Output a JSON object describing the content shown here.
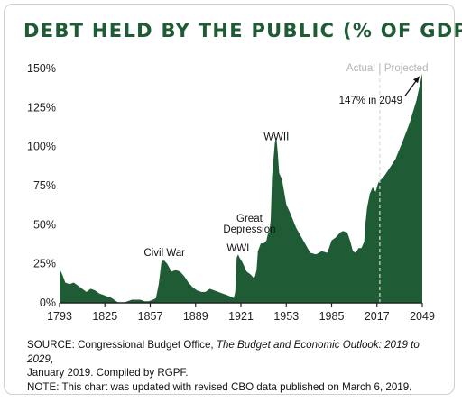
{
  "chart_data": {
    "type": "area",
    "title": "DEBT HELD BY THE PUBLIC (% OF GDP)",
    "xlim": [
      1793,
      2049
    ],
    "ylim": [
      0,
      150
    ],
    "x_ticks": [
      "1793",
      "1825",
      "1857",
      "1889",
      "1921",
      "1953",
      "1985",
      "2017",
      "2049"
    ],
    "y_ticks": [
      "0%",
      "25%",
      "50%",
      "75%",
      "100%",
      "125%",
      "150%"
    ],
    "fill_color": "#1f5b34",
    "divider_year": 2019,
    "phase_labels": {
      "actual": "Actual",
      "projected": "Projected"
    },
    "annotations": [
      {
        "text": "Civil War",
        "x": 1867,
        "y": 30
      },
      {
        "text": "WWI",
        "x": 1919,
        "y": 33
      },
      {
        "text": "Great",
        "x": 1927,
        "y": 52
      },
      {
        "text": "Depression",
        "x": 1927,
        "y": 45
      },
      {
        "text": "WWII",
        "x": 1946,
        "y": 104
      },
      {
        "text": "147% in 2049",
        "x": 2049,
        "y": 147
      }
    ],
    "series": [
      {
        "x": [
          1793,
          1795,
          1797,
          1800,
          1803,
          1806,
          1809,
          1812,
          1815,
          1818,
          1821,
          1824,
          1827,
          1830,
          1833,
          1835,
          1838,
          1841,
          1844,
          1847,
          1850,
          1853,
          1856,
          1859,
          1861,
          1863,
          1865,
          1867,
          1869,
          1872,
          1875,
          1878,
          1881,
          1884,
          1887,
          1890,
          1893,
          1896,
          1899,
          1902,
          1905,
          1908,
          1911,
          1914,
          1916,
          1917,
          1918,
          1919,
          1920,
          1922,
          1925,
          1928,
          1930,
          1931,
          1932,
          1933,
          1935,
          1937,
          1939,
          1940,
          1941,
          1942,
          1943,
          1944,
          1945,
          1946,
          1947,
          1948,
          1950,
          1953,
          1956,
          1960,
          1965,
          1970,
          1974,
          1978,
          1982,
          1985,
          1988,
          1991,
          1993,
          1996,
          1998,
          2000,
          2002,
          2004,
          2006,
          2008,
          2009,
          2010,
          2012,
          2014,
          2016,
          2018,
          2019,
          2022,
          2025,
          2030,
          2035,
          2040,
          2045,
          2049
        ],
        "y": [
          22,
          18,
          13,
          12,
          13,
          11,
          9,
          7,
          9,
          8,
          6,
          5,
          4,
          3,
          1,
          0,
          0,
          1,
          2,
          2,
          2,
          1,
          1,
          2,
          3,
          12,
          27,
          27,
          25,
          20,
          21,
          20,
          17,
          13,
          10,
          8,
          7,
          7,
          9,
          8,
          7,
          6,
          5,
          4,
          3,
          7,
          29,
          31,
          29,
          26,
          20,
          18,
          16,
          17,
          21,
          33,
          38,
          38,
          40,
          44,
          45,
          53,
          81,
          92,
          103,
          106,
          96,
          83,
          79,
          63,
          57,
          48,
          40,
          32,
          31,
          33,
          32,
          40,
          42,
          45,
          46,
          45,
          40,
          33,
          32,
          35,
          35,
          39,
          52,
          61,
          70,
          74,
          71,
          77,
          78,
          81,
          85,
          92,
          103,
          115,
          130,
          147
        ]
      }
    ]
  },
  "footer": {
    "source_prefix": "SOURCE: Congressional Budget Office, ",
    "source_title": "The Budget and Economic Outlook: 2019 to 2029",
    "source_suffix": ",",
    "source_line2": "January 2019. Compiled by RGPF.",
    "note": "NOTE: This chart was updated with revised CBO data published on March 6, 2019."
  }
}
